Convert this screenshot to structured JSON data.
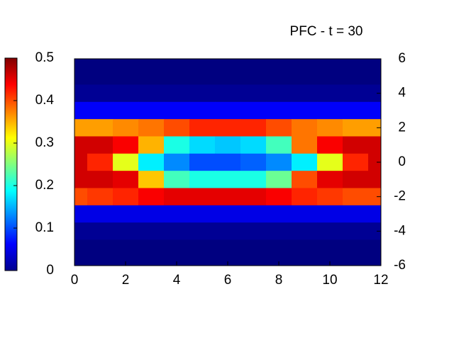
{
  "chart_data": {
    "type": "heatmap",
    "title": "PFC - t = 30",
    "x": [
      0,
      1,
      2,
      3,
      4,
      5,
      6,
      7,
      8,
      9,
      10,
      11,
      12
    ],
    "y": [
      6,
      5,
      4,
      3,
      2,
      1,
      0,
      -1,
      -2,
      -3,
      -4,
      -5,
      -6
    ],
    "z": [
      [
        0,
        0,
        0,
        0,
        0,
        0,
        0,
        0,
        0,
        0,
        0,
        0,
        0
      ],
      [
        0,
        0,
        0,
        0,
        0,
        0,
        0,
        0,
        0,
        0,
        0,
        0,
        0
      ],
      [
        0.01,
        0.01,
        0.01,
        0.01,
        0.01,
        0.01,
        0.01,
        0.01,
        0.01,
        0.01,
        0.01,
        0.01,
        0.01
      ],
      [
        0.06,
        0.06,
        0.06,
        0.06,
        0.06,
        0.06,
        0.06,
        0.06,
        0.06,
        0.06,
        0.06,
        0.06,
        0.06
      ],
      [
        0.36,
        0.36,
        0.37,
        0.38,
        0.4,
        0.42,
        0.42,
        0.42,
        0.4,
        0.38,
        0.37,
        0.36,
        0.36
      ],
      [
        0.46,
        0.46,
        0.44,
        0.35,
        0.2,
        0.17,
        0.16,
        0.17,
        0.22,
        0.38,
        0.44,
        0.46,
        0.46
      ],
      [
        0.46,
        0.42,
        0.3,
        0.18,
        0.13,
        0.1,
        0.1,
        0.11,
        0.13,
        0.18,
        0.3,
        0.42,
        0.46
      ],
      [
        0.46,
        0.46,
        0.45,
        0.34,
        0.22,
        0.2,
        0.2,
        0.2,
        0.24,
        0.4,
        0.45,
        0.46,
        0.46
      ],
      [
        0.4,
        0.41,
        0.42,
        0.44,
        0.45,
        0.45,
        0.45,
        0.45,
        0.44,
        0.42,
        0.41,
        0.4,
        0.4
      ],
      [
        0.05,
        0.05,
        0.05,
        0.05,
        0.05,
        0.05,
        0.05,
        0.05,
        0.05,
        0.05,
        0.05,
        0.05,
        0.05
      ],
      [
        0.01,
        0.01,
        0.01,
        0.01,
        0.01,
        0.01,
        0.01,
        0.01,
        0.01,
        0.01,
        0.01,
        0.01,
        0.01
      ],
      [
        0,
        0,
        0,
        0,
        0,
        0,
        0,
        0,
        0,
        0,
        0,
        0,
        0
      ],
      [
        0,
        0,
        0,
        0,
        0,
        0,
        0,
        0,
        0,
        0,
        0,
        0,
        0
      ]
    ],
    "xlim": [
      0,
      12
    ],
    "xticks": [
      0,
      2,
      4,
      6,
      8,
      10,
      12
    ],
    "ylim": [
      -6,
      6
    ],
    "yticks": [
      -6,
      -4,
      -2,
      0,
      2,
      4,
      6
    ],
    "clim": [
      0,
      0.5
    ],
    "cticks": [
      0,
      0.1,
      0.2,
      0.3,
      0.4,
      0.5
    ],
    "colormap": "jet"
  }
}
